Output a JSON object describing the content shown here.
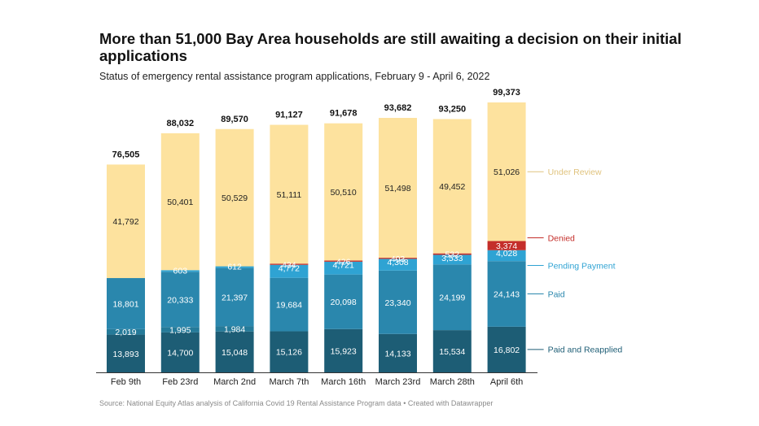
{
  "title": "More than 51,000 Bay Area households are still awaiting a decision on their initial applications",
  "subtitle": "Status of emergency rental assistance program applications, February 9 - April 6, 2022",
  "source": "Source: National Equity Atlas analysis of California Covid 19 Rental Assistance Program data • Created with Datawrapper",
  "chart_data": {
    "type": "bar",
    "stacked": true,
    "categories": [
      "Feb 9th",
      "Feb 23rd",
      "March 2nd",
      "March 7th",
      "March 16th",
      "March 23rd",
      "March 28th",
      "April 6th"
    ],
    "totals": [
      76505,
      88032,
      89570,
      91127,
      91678,
      93682,
      93250,
      99373
    ],
    "total_labels": [
      "76,505",
      "88,032",
      "89,570",
      "91,127",
      "91,678",
      "93,682",
      "93,250",
      "99,373"
    ],
    "legend_placement": "right",
    "grid": false,
    "series": [
      {
        "name": "Paid and Reapplied",
        "legend": true,
        "color": "#1d5d75",
        "values": [
          13893,
          14700,
          15048,
          15126,
          15923,
          14133,
          15534,
          16802
        ],
        "labels": [
          "13,893",
          "14,700",
          "15,048",
          "15,126",
          "15,923",
          "14,133",
          "15,534",
          "16,802"
        ]
      },
      {
        "name": "",
        "legend": false,
        "color": "#257a99",
        "values": [
          2019,
          1995,
          1984,
          0,
          0,
          0,
          0,
          0
        ],
        "labels": [
          "2,019",
          "1,995",
          "1,984",
          "",
          "",
          "",
          "",
          ""
        ]
      },
      {
        "name": "Paid",
        "legend": true,
        "color": "#2a87ad",
        "values": [
          18801,
          20333,
          21397,
          19684,
          20098,
          23340,
          24199,
          24143
        ],
        "labels": [
          "18,801",
          "20,333",
          "21,397",
          "19,684",
          "20,098",
          "23,340",
          "24,199",
          "24,143"
        ]
      },
      {
        "name": "Pending Payment",
        "legend": true,
        "color": "#2fa3d3",
        "values": [
          0,
          603,
          612,
          4772,
          4721,
          4308,
          3533,
          4028
        ],
        "labels": [
          "",
          "603",
          "612",
          "4,772",
          "4,721",
          "4,308",
          "3,533",
          "4,028"
        ]
      },
      {
        "name": "Denied",
        "legend": true,
        "color": "#c42e2a",
        "values": [
          0,
          0,
          0,
          434,
          426,
          403,
          532,
          3374
        ],
        "labels": [
          "",
          "",
          "",
          "434",
          "426",
          "403",
          "532",
          "3,374"
        ]
      },
      {
        "name": "Under Review",
        "legend": true,
        "color": "#fde29e",
        "values": [
          41792,
          50401,
          50529,
          51111,
          50510,
          51498,
          49452,
          51026
        ],
        "labels": [
          "41,792",
          "50,401",
          "50,529",
          "51,111",
          "50,510",
          "51,498",
          "49,452",
          "51,026"
        ]
      }
    ],
    "legend_colors": {
      "Paid and Reapplied": "#1d5d75",
      "Paid": "#2a87ad",
      "Pending Payment": "#2fa3d3",
      "Denied": "#c42e2a",
      "Under Review": "#e0c37e"
    }
  }
}
